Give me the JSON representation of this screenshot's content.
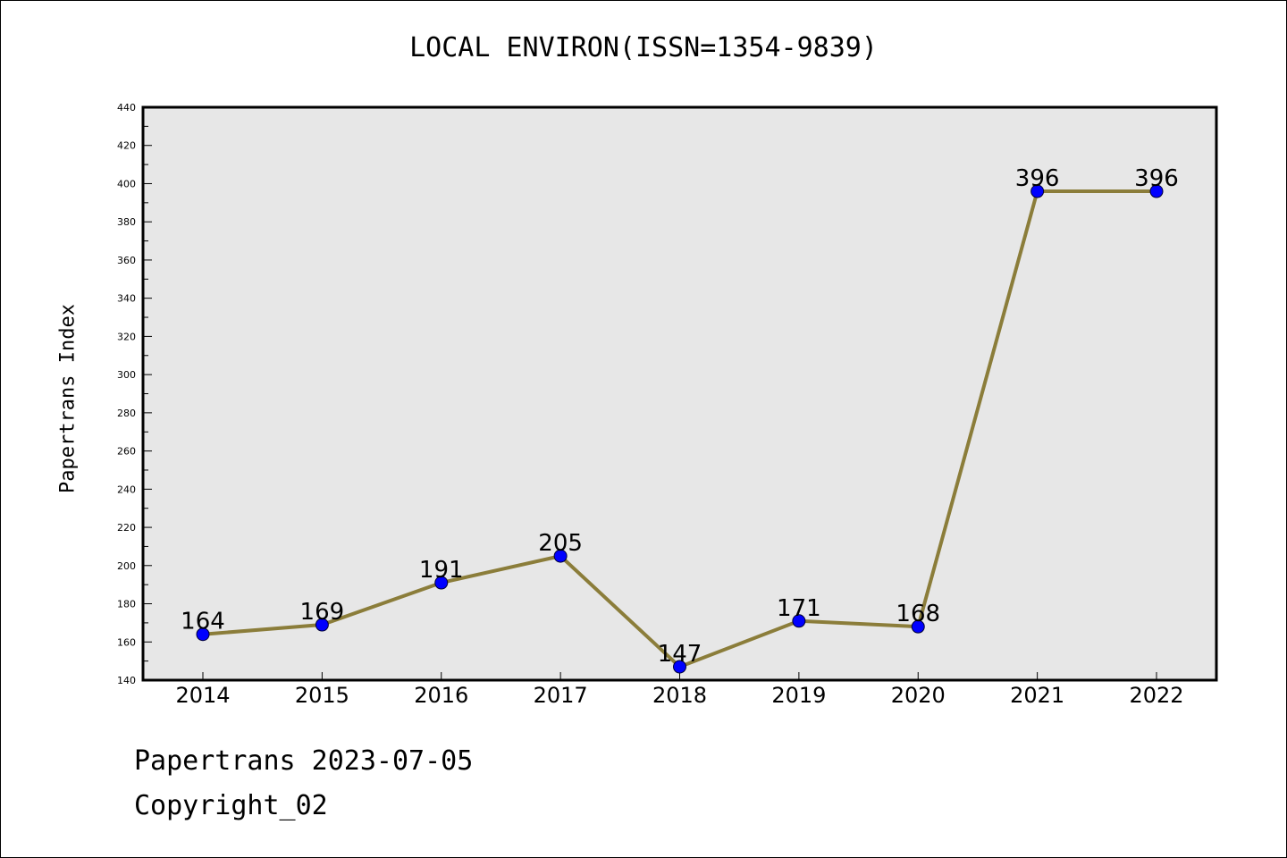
{
  "chart_data": {
    "type": "line",
    "title": "LOCAL ENVIRON(ISSN=1354-9839)",
    "xlabel": "",
    "ylabel": "Papertrans Index",
    "categories": [
      "2014",
      "2015",
      "2016",
      "2017",
      "2018",
      "2019",
      "2020",
      "2021",
      "2022"
    ],
    "series": [
      {
        "values": [
          164,
          169,
          191,
          205,
          147,
          171,
          168,
          396,
          396
        ]
      }
    ],
    "ylim": [
      140,
      440
    ],
    "ytick_step": 20,
    "grid": false,
    "colors": {
      "line": "#8B7D3A",
      "marker": "#0000FF",
      "plot_bg": "#E7E7E7"
    }
  },
  "footer": {
    "line1": "Papertrans 2023-07-05",
    "line2": "Copyright_02"
  }
}
